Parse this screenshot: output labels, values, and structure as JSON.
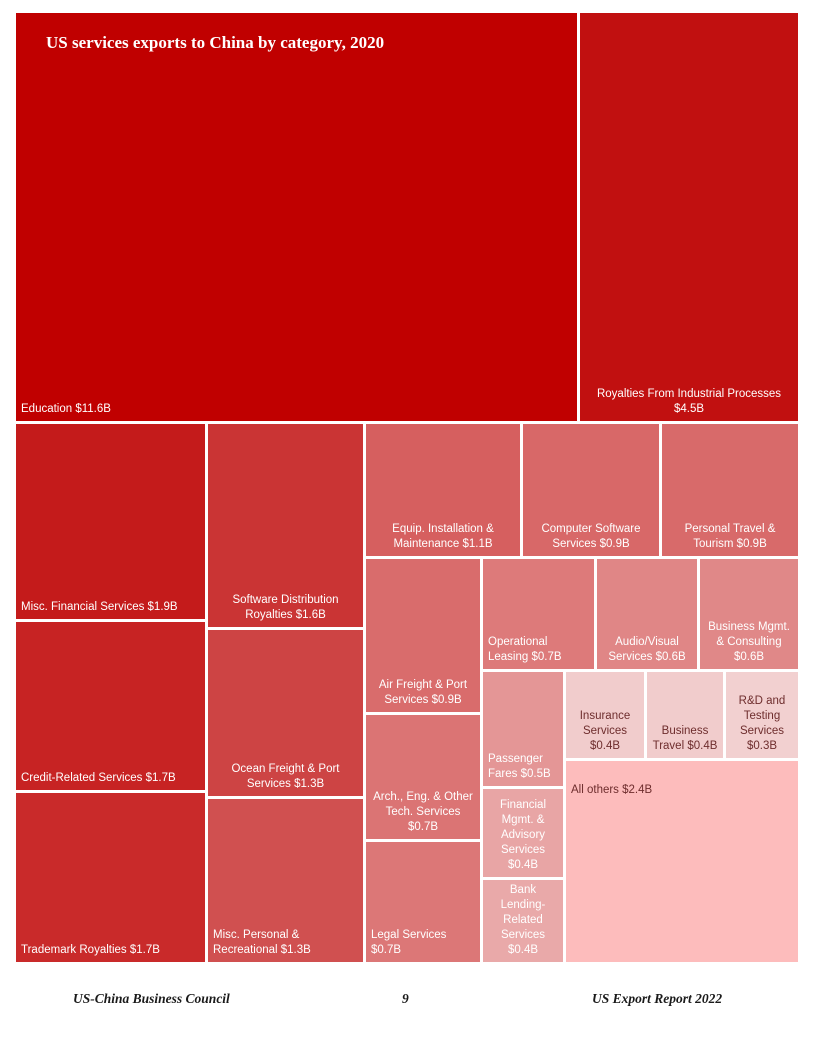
{
  "chart_data": {
    "type": "treemap",
    "title": "US services exports to China by category, 2020",
    "unit": "$B",
    "items": [
      {
        "label": "Education $11.6B",
        "name": "Education",
        "value": 11.6,
        "color": "#c00000"
      },
      {
        "label": "Royalties From Industrial Processes\n$4.5B",
        "name": "Royalties From Industrial Processes",
        "value": 4.5,
        "color": "#c11010"
      },
      {
        "label": "Misc. Financial Services $1.9B",
        "name": "Misc. Financial Services",
        "value": 1.9,
        "color": "#c41b1b"
      },
      {
        "label": "Credit-Related Services $1.7B",
        "name": "Credit-Related Services",
        "value": 1.7,
        "color": "#c72323"
      },
      {
        "label": "Trademark Royalties $1.7B",
        "name": "Trademark Royalties",
        "value": 1.7,
        "color": "#c92a2a"
      },
      {
        "label": "Software Distribution\nRoyalties $1.6B",
        "name": "Software Distribution Royalties",
        "value": 1.6,
        "color": "#ca3434"
      },
      {
        "label": "Ocean Freight & Port\nServices $1.3B",
        "name": "Ocean Freight & Port Services",
        "value": 1.3,
        "color": "#cd4444"
      },
      {
        "label": "Misc. Personal &\nRecreational $1.3B",
        "name": "Misc. Personal & Recreational",
        "value": 1.3,
        "color": "#d05050"
      },
      {
        "label": "Equip. Installation &\nMaintenance $1.1B",
        "name": "Equip. Installation & Maintenance",
        "value": 1.1,
        "color": "#d65f5f"
      },
      {
        "label": "Computer Software\nServices $0.9B",
        "name": "Computer Software Services",
        "value": 0.9,
        "color": "#d86868"
      },
      {
        "label": "Personal Travel &\nTourism $0.9B",
        "name": "Personal Travel & Tourism",
        "value": 0.9,
        "color": "#d86a6a"
      },
      {
        "label": "Air Freight & Port\nServices $0.9B",
        "name": "Air Freight & Port Services",
        "value": 0.9,
        "color": "#d96c6c"
      },
      {
        "label": "Arch., Eng. & Other\nTech. Services $0.7B",
        "name": "Arch., Eng. & Other Tech. Services",
        "value": 0.7,
        "color": "#db7474"
      },
      {
        "label": "Legal Services $0.7B",
        "name": "Legal Services",
        "value": 0.7,
        "color": "#dc7777"
      },
      {
        "label": "Operational\nLeasing $0.7B",
        "name": "Operational Leasing",
        "value": 0.7,
        "color": "#dd7a7a"
      },
      {
        "label": "Audio/Visual\nServices $0.6B",
        "name": "Audio/Visual Services",
        "value": 0.6,
        "color": "#e08686"
      },
      {
        "label": "Business Mgmt.\n& Consulting\n$0.6B",
        "name": "Business Mgmt. & Consulting",
        "value": 0.6,
        "color": "#e08888"
      },
      {
        "label": "Passenger\nFares $0.5B",
        "name": "Passenger Fares",
        "value": 0.5,
        "color": "#e49696"
      },
      {
        "label": "Financial\nMgmt. &\nAdvisory\nServices $0.4B",
        "name": "Financial Mgmt. & Advisory Services",
        "value": 0.4,
        "color": "#e8a5a5"
      },
      {
        "label": "Bank\nLending-\nRelated\nServices $0.4B",
        "name": "Bank Lending-Related Services",
        "value": 0.4,
        "color": "#e9a9a9"
      },
      {
        "label": "Insurance\nServices\n$0.4B",
        "name": "Insurance Services",
        "value": 0.4,
        "color": "#f1cccc"
      },
      {
        "label": "Business\nTravel $0.4B",
        "name": "Business Travel",
        "value": 0.4,
        "color": "#f1cccc"
      },
      {
        "label": "R&D and\nTesting\nServices\n$0.3B",
        "name": "R&D and Testing Services",
        "value": 0.3,
        "color": "#f2d0d0"
      },
      {
        "label": "All others $2.4B",
        "name": "All others",
        "value": 2.4,
        "color": "#fdbcbc"
      }
    ]
  },
  "footer": {
    "left": "US-China Business Council",
    "center": "9",
    "right": "US Export Report 2022"
  }
}
